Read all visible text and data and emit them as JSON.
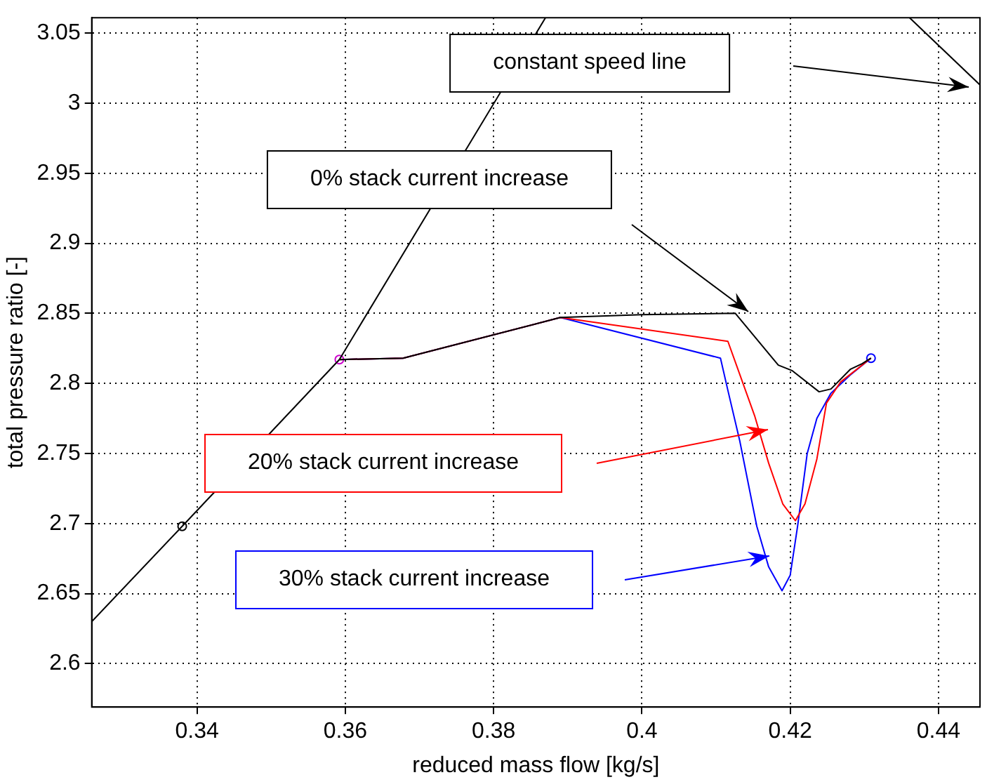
{
  "chart_data": {
    "type": "line",
    "xlabel": "reduced mass flow [kg/s]",
    "ylabel": "total pressure ratio [-]",
    "xlim": [
      0.3258,
      0.4456
    ],
    "ylim": [
      2.569,
      3.061
    ],
    "xticks": [
      0.34,
      0.36,
      0.38,
      0.4,
      0.42,
      0.44
    ],
    "yticks": [
      2.6,
      2.65,
      2.7,
      2.75,
      2.8,
      2.85,
      2.9,
      2.95,
      3,
      3.05
    ],
    "grid": true,
    "legend": false,
    "series": [
      {
        "color": "#000000",
        "x": [
          0.3592,
          0.3678,
          0.389,
          0.4,
          0.4126,
          0.4184,
          0.4203,
          0.4239,
          0.4255,
          0.4281,
          0.4297,
          0.4309
        ],
        "values": [
          2.817,
          2.818,
          2.847,
          2.849,
          2.85,
          2.813,
          2.809,
          2.794,
          2.796,
          2.81,
          2.814,
          2.818
        ]
      },
      {
        "color": "#ff0000",
        "x": [
          0.3592,
          0.3678,
          0.389,
          0.4116,
          0.4152,
          0.4171,
          0.419,
          0.4207,
          0.422,
          0.4236,
          0.4249,
          0.4268,
          0.4309
        ],
        "values": [
          2.817,
          2.818,
          2.847,
          2.83,
          2.777,
          2.743,
          2.714,
          2.702,
          2.714,
          2.746,
          2.786,
          2.801,
          2.818
        ]
      },
      {
        "color": "#0000ff",
        "x": [
          0.3592,
          0.3678,
          0.389,
          0.4106,
          0.4116,
          0.4132,
          0.4155,
          0.4171,
          0.4189,
          0.42,
          0.421,
          0.4223,
          0.4236,
          0.4255,
          0.4281,
          0.4309
        ],
        "values": [
          2.817,
          2.818,
          2.847,
          2.818,
          2.795,
          2.759,
          2.698,
          2.669,
          2.652,
          2.663,
          2.698,
          2.75,
          2.775,
          2.793,
          2.806,
          2.818
        ]
      },
      {
        "color": "#000000",
        "x": [
          0.3258,
          0.338,
          0.3592,
          0.387
        ],
        "values": [
          2.63,
          2.698,
          2.817,
          3.061
        ]
      },
      {
        "color": "#000000",
        "x": [
          0.4361,
          0.4456
        ],
        "values": [
          3.061,
          3.013
        ]
      },
      {
        "type": "scatter",
        "marker": "circle",
        "x": [
          0.338,
          0.3592,
          0.4309
        ],
        "values": [
          2.698,
          2.817,
          2.818
        ],
        "colors": [
          "#000000",
          "#cc00cc",
          "#0000ff"
        ]
      }
    ],
    "annotations": [
      "constant speed line",
      "0% stack current increase",
      "20% stack current increase",
      "30% stack current increase"
    ]
  }
}
